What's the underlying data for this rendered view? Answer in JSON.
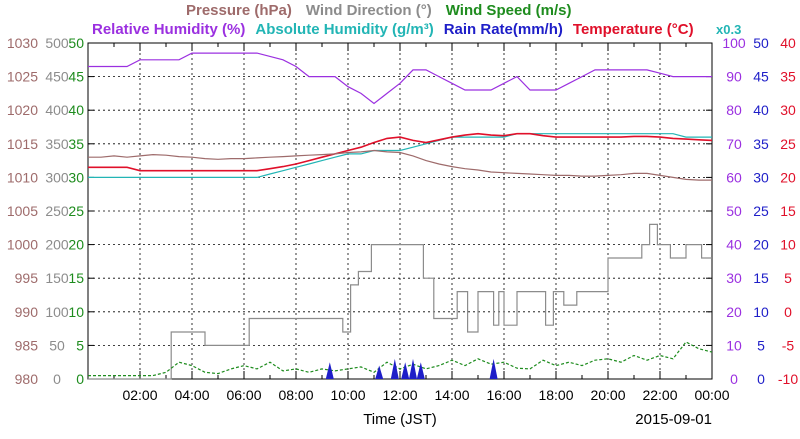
{
  "chart_data": {
    "type": "line",
    "date": "2015-09-01",
    "xlabel": "Time (JST)",
    "x_ticks": [
      "02:00",
      "04:00",
      "06:00",
      "08:00",
      "10:00",
      "12:00",
      "14:00",
      "16:00",
      "18:00",
      "20:00",
      "22:00",
      "00:00"
    ],
    "xlim": [
      0,
      24
    ],
    "legend_row1": [
      {
        "text": "Pressure (hPa)",
        "color": "#9e6b6b"
      },
      {
        "text": "Wind Direction (°)",
        "color": "#8c8c8c"
      },
      {
        "text": "Wind Speed (m/s)",
        "color": "#1e8c1e"
      }
    ],
    "legend_row2": [
      {
        "text": "Relative Humidity (%)",
        "color": "#9b30e0"
      },
      {
        "text": "Absolute Humidity (g/m³)",
        "color": "#22b5b5"
      },
      {
        "text": "Rain Rate(mm/h)",
        "color": "#1e1ec8"
      },
      {
        "text": "Temperature (°C)",
        "color": "#e0102a"
      }
    ],
    "scale_note": "x0.3",
    "axes": {
      "pressure": {
        "color": "#9e6b6b",
        "lim": [
          980,
          1030
        ],
        "ticks": [
          "980",
          "985",
          "990",
          "995",
          "1000",
          "1005",
          "1010",
          "1015",
          "1020",
          "1025",
          "1030"
        ]
      },
      "wind_direction": {
        "color": "#8c8c8c",
        "lim": [
          0,
          500
        ],
        "ticks": [
          "0",
          "50",
          "100",
          "150",
          "200",
          "250",
          "300",
          "350",
          "400",
          "450",
          "500"
        ]
      },
      "wind_speed": {
        "color": "#1e8c1e",
        "lim": [
          0,
          50
        ],
        "ticks": [
          "0",
          "5",
          "10",
          "15",
          "20",
          "25",
          "30",
          "35",
          "40",
          "45",
          "50"
        ]
      },
      "humidity": {
        "color": "#9b30e0",
        "lim": [
          0,
          100
        ],
        "ticks": [
          "0",
          "10",
          "20",
          "30",
          "40",
          "50",
          "60",
          "70",
          "80",
          "90",
          "100"
        ]
      },
      "rain": {
        "color": "#1e1ec8",
        "lim": [
          0,
          50
        ],
        "ticks": [
          "0",
          "5",
          "10",
          "15",
          "20",
          "25",
          "30",
          "35",
          "40",
          "45",
          "50"
        ]
      },
      "temperature": {
        "color": "#e0102a",
        "lim": [
          -10,
          40
        ],
        "ticks": [
          "-10",
          "-5",
          "0",
          "5",
          "10",
          "15",
          "20",
          "25",
          "30",
          "35",
          "40"
        ]
      }
    },
    "series": [
      {
        "name": "Relative Humidity",
        "axis": "humidity",
        "color": "#9b30e0",
        "x": [
          0,
          0.5,
          1,
          1.5,
          2,
          2.5,
          3,
          3.5,
          4,
          4.5,
          5,
          5.5,
          6,
          6.5,
          7,
          7.5,
          8,
          8.5,
          9,
          9.5,
          10,
          10.5,
          11,
          11.5,
          12,
          12.5,
          13,
          13.5,
          14,
          14.5,
          15,
          15.5,
          16,
          16.5,
          17,
          17.5,
          18,
          18.5,
          19,
          19.5,
          20,
          20.5,
          21,
          21.5,
          22,
          22.5,
          23,
          23.5,
          24
        ],
        "y": [
          93,
          93,
          93,
          93,
          95,
          95,
          95,
          95,
          97,
          97,
          97,
          97,
          97,
          97,
          96,
          95,
          93,
          90,
          90,
          90,
          87,
          85,
          82,
          85,
          88,
          92,
          92,
          90,
          88,
          86,
          86,
          86,
          88,
          90,
          86,
          86,
          86,
          88,
          90,
          92,
          92,
          92,
          92,
          92,
          91,
          90,
          90,
          90,
          90
        ]
      },
      {
        "name": "Absolute Humidity",
        "axis": "humidity",
        "color": "#22b5b5",
        "x": [
          0,
          0.5,
          1,
          1.5,
          2,
          2.5,
          3,
          3.5,
          4,
          4.5,
          5,
          5.5,
          6,
          6.5,
          7,
          7.5,
          8,
          8.5,
          9,
          9.5,
          10,
          10.5,
          11,
          11.5,
          12,
          12.5,
          13,
          13.5,
          14,
          14.5,
          15,
          15.5,
          16,
          16.5,
          17,
          17.5,
          18,
          18.5,
          19,
          19.5,
          20,
          20.5,
          21,
          21.5,
          22,
          22.5,
          23,
          23.5,
          24
        ],
        "y": [
          60,
          60,
          60,
          60,
          60,
          60,
          60,
          60,
          60,
          60,
          60,
          60,
          60,
          60,
          61,
          62,
          63,
          64,
          65,
          66,
          67,
          67,
          68,
          68,
          68,
          69,
          70,
          71,
          72,
          72,
          72,
          72,
          72,
          73,
          73,
          73,
          73,
          73,
          73,
          73,
          73,
          73,
          73,
          73,
          73,
          73,
          72,
          72,
          72
        ]
      },
      {
        "name": "Temperature",
        "axis": "temperature",
        "color": "#e0102a",
        "x": [
          0,
          0.5,
          1,
          1.5,
          2,
          2.5,
          3,
          3.5,
          4,
          4.5,
          5,
          5.5,
          6,
          6.5,
          7,
          7.5,
          8,
          8.5,
          9,
          9.5,
          10,
          10.5,
          11,
          11.5,
          12,
          12.5,
          13,
          13.5,
          14,
          14.5,
          15,
          15.5,
          16,
          16.5,
          17,
          17.5,
          18,
          18.5,
          19,
          19.5,
          20,
          20.5,
          21,
          21.5,
          22,
          22.5,
          23,
          23.5,
          24
        ],
        "y": [
          21.5,
          21.5,
          21.5,
          21.5,
          21,
          21,
          21,
          21,
          21,
          21,
          21,
          21,
          21,
          21,
          21.3,
          21.6,
          22,
          22.5,
          23,
          23.5,
          24,
          24.5,
          25.2,
          25.8,
          26,
          25.5,
          25.2,
          25.6,
          26,
          26.3,
          26.5,
          26.3,
          26.2,
          26.5,
          26.5,
          26.2,
          26,
          26,
          26,
          26,
          26,
          26,
          26.1,
          26.1,
          26,
          25.8,
          25.7,
          25.6,
          25.5
        ]
      },
      {
        "name": "Pressure",
        "axis": "pressure",
        "color": "#9e6b6b",
        "x": [
          0,
          0.5,
          1,
          1.5,
          2,
          2.5,
          3,
          3.5,
          4,
          4.5,
          5,
          5.5,
          6,
          6.5,
          7,
          7.5,
          8,
          8.5,
          9,
          9.5,
          10,
          10.5,
          11,
          11.5,
          12,
          12.5,
          13,
          13.5,
          14,
          14.5,
          15,
          15.5,
          16,
          16.5,
          17,
          17.5,
          18,
          18.5,
          19,
          19.5,
          20,
          20.5,
          21,
          21.5,
          22,
          22.5,
          23,
          23.5,
          24
        ],
        "y": [
          1013,
          1013,
          1013.2,
          1013,
          1013.2,
          1013.4,
          1013.3,
          1013.1,
          1013,
          1012.8,
          1012.7,
          1012.8,
          1012.8,
          1012.9,
          1013,
          1013.1,
          1013.2,
          1013.3,
          1013.4,
          1013.5,
          1013.7,
          1013.8,
          1014,
          1013.8,
          1013.7,
          1013.2,
          1012.5,
          1012,
          1011.6,
          1011.3,
          1011.1,
          1010.8,
          1010.7,
          1010.6,
          1010.5,
          1010.4,
          1010.3,
          1010.3,
          1010.2,
          1010.2,
          1010.3,
          1010.4,
          1010.6,
          1010.6,
          1010.3,
          1010,
          1009.7,
          1009.6,
          1009.6
        ]
      },
      {
        "name": "Wind Direction",
        "axis": "wind_direction",
        "color": "#8c8c8c",
        "x": [
          0,
          2.9,
          2.9,
          3.2,
          3.2,
          4.2,
          4.2,
          4.5,
          4.5,
          5.5,
          5.5,
          6.2,
          6.2,
          6.9,
          6.9,
          8,
          8,
          9,
          9,
          9.8,
          9.8,
          10.1,
          10.1,
          10.4,
          10.4,
          10.9,
          10.9,
          12,
          12,
          12.9,
          12.9,
          13.3,
          13.3,
          13.8,
          13.8,
          14.2,
          14.2,
          14.6,
          14.6,
          15,
          15,
          15.6,
          15.6,
          15.8,
          15.8,
          16,
          16,
          16.5,
          16.5,
          17,
          17,
          17.6,
          17.6,
          17.9,
          17.9,
          18.3,
          18.3,
          18.8,
          18.8,
          19.3,
          19.3,
          19.7,
          19.7,
          20,
          20,
          20.8,
          20.8,
          21.3,
          21.3,
          21.6,
          21.6,
          21.9,
          21.9,
          22.4,
          22.4,
          23,
          23,
          23.6,
          23.6,
          24
        ],
        "y": [
          0,
          0,
          0,
          0,
          70,
          70,
          70,
          70,
          50,
          50,
          50,
          50,
          90,
          90,
          90,
          90,
          90,
          90,
          90,
          90,
          70,
          70,
          140,
          140,
          160,
          160,
          200,
          200,
          200,
          200,
          150,
          150,
          90,
          90,
          90,
          90,
          130,
          130,
          70,
          70,
          130,
          130,
          80,
          80,
          130,
          130,
          80,
          80,
          130,
          130,
          130,
          130,
          80,
          80,
          130,
          130,
          110,
          110,
          130,
          130,
          130,
          130,
          130,
          130,
          180,
          180,
          180,
          180,
          200,
          200,
          230,
          230,
          200,
          200,
          180,
          180,
          200,
          200,
          180,
          180
        ]
      },
      {
        "name": "Wind Speed",
        "axis": "wind_speed",
        "color": "#1e8c1e",
        "x": [
          0,
          0.5,
          1,
          1.5,
          2,
          2.5,
          3,
          3.5,
          4,
          4.5,
          5,
          5.5,
          6,
          6.5,
          7,
          7.5,
          8,
          8.5,
          9,
          9.5,
          10,
          10.5,
          11,
          11.5,
          12,
          12.5,
          13,
          13.5,
          14,
          14.5,
          15,
          15.5,
          16,
          16.5,
          17,
          17.5,
          18,
          18.5,
          19,
          19.5,
          20,
          20.5,
          21,
          21.5,
          22,
          22.5,
          23,
          23.5,
          24
        ],
        "y": [
          0.5,
          0.5,
          0.5,
          0.5,
          0.5,
          0.5,
          1,
          2.5,
          2,
          1,
          0.8,
          1.5,
          2,
          1.5,
          2.5,
          1.2,
          1.5,
          1,
          1.5,
          1.2,
          1.5,
          1.8,
          1,
          2.5,
          1.5,
          2.2,
          1.5,
          2,
          2.8,
          2,
          3,
          2.2,
          2.5,
          1.6,
          1.5,
          2.8,
          2,
          2.5,
          2,
          2.8,
          3,
          2.5,
          3.5,
          2.8,
          3.5,
          3,
          5.5,
          4.5,
          4
        ]
      },
      {
        "name": "Rain Rate",
        "axis": "rain",
        "color": "#1e1ec8",
        "x": [
          9.3,
          11.2,
          11.8,
          12.2,
          12.5,
          12.8,
          15.6
        ],
        "y": [
          2.5,
          2.0,
          3.0,
          2.5,
          3.0,
          2.5,
          3.0
        ]
      }
    ]
  }
}
